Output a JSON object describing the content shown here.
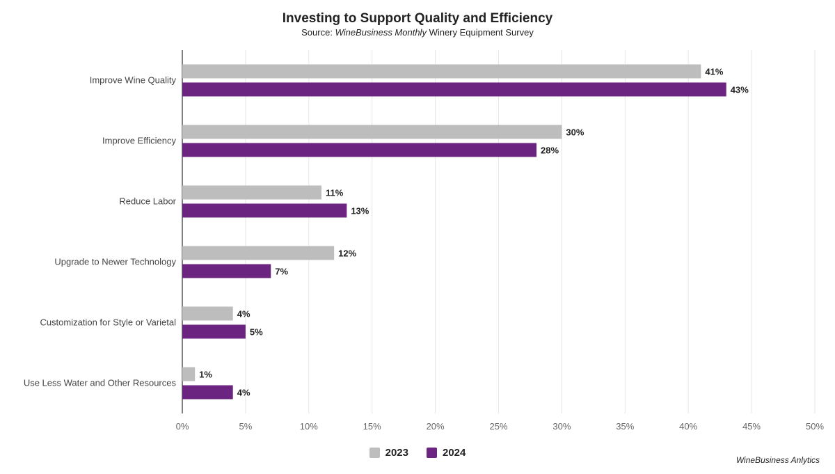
{
  "title": "Investing to Support Quality and Efficiency",
  "subtitle": {
    "prefix": "Source: ",
    "publication": "WineBusiness Monthly",
    "suffix": " Winery Equipment Survey"
  },
  "credit": "WineBusiness Anlytics",
  "colors": {
    "2023": "#bdbdbd",
    "2024": "#6b247f",
    "grid": "#e6e6e6",
    "axis": "#555555"
  },
  "chart_data": {
    "type": "bar",
    "orientation": "horizontal",
    "title": "Investing to Support Quality and Efficiency",
    "xlabel": "",
    "ylabel": "",
    "xlim": [
      0,
      50
    ],
    "x_ticks": [
      "0%",
      "5%",
      "10%",
      "15%",
      "20%",
      "25%",
      "30%",
      "35%",
      "40%",
      "45%",
      "50%"
    ],
    "grid": "vertical",
    "legend": "bottom-center",
    "categories": [
      "Improve Wine Quality",
      "Improve Efficiency",
      "Reduce Labor",
      "Upgrade to Newer Technology",
      "Customization for Style or Varietal",
      "Use Less Water and Other Resources"
    ],
    "series": [
      {
        "name": "2023",
        "values": [
          41,
          30,
          11,
          12,
          4,
          1
        ]
      },
      {
        "name": "2024",
        "values": [
          43,
          28,
          13,
          7,
          5,
          4
        ]
      }
    ]
  }
}
